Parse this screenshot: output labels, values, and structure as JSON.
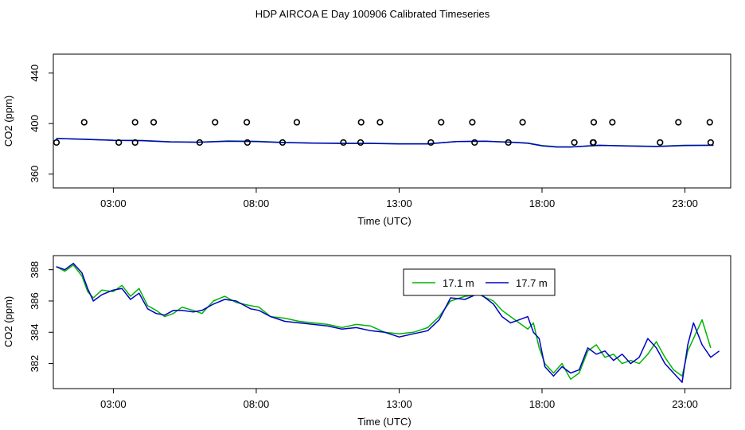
{
  "title": "HDP AIRCOA E  Day 100906  Calibrated Timeseries",
  "colors": {
    "green": "#00b400",
    "blue": "#0000c8",
    "axis": "#000000"
  },
  "chart_data": [
    {
      "type": "line",
      "panel": "top",
      "xlabel": "Time (UTC)",
      "ylabel": "CO2 (ppm)",
      "x_unit": "hours UTC",
      "xlim": [
        0.9,
        24.6
      ],
      "ylim": [
        349,
        455
      ],
      "x_ticks": [
        3,
        8,
        13,
        18,
        23
      ],
      "x_tick_labels": [
        "03:00",
        "08:00",
        "13:00",
        "18:00",
        "23:00"
      ],
      "y_ticks": [
        360,
        400,
        440
      ],
      "y_tick_labels": [
        "360",
        "400",
        "440"
      ],
      "series": [
        {
          "style": "line",
          "color": "#00b400",
          "x": [
            1.0,
            2.0,
            3.0,
            4.0,
            5.0,
            6.0,
            7.0,
            8.0,
            9.0,
            10.0,
            11.0,
            12.0,
            13.0,
            14.0,
            15.0,
            16.0,
            17.0,
            17.5,
            18.0,
            18.5,
            19.0,
            20.0,
            21.0,
            22.0,
            23.0,
            24.0
          ],
          "y": [
            388.2,
            387.6,
            386.8,
            386.6,
            385.6,
            385.3,
            386.2,
            386.0,
            385.0,
            384.6,
            384.4,
            384.4,
            384.0,
            384.0,
            385.8,
            386.0,
            385.2,
            384.6,
            382.6,
            381.6,
            381.5,
            382.6,
            382.4,
            382.0,
            382.8,
            382.8
          ]
        },
        {
          "style": "line",
          "color": "#0000c8",
          "x": [
            1.0,
            2.0,
            3.0,
            4.0,
            5.0,
            6.0,
            7.0,
            8.0,
            9.0,
            10.0,
            11.0,
            12.0,
            13.0,
            14.0,
            15.0,
            16.0,
            17.0,
            17.5,
            18.0,
            18.5,
            19.0,
            20.0,
            21.0,
            22.0,
            23.0,
            24.0
          ],
          "y": [
            388.2,
            387.5,
            386.7,
            386.5,
            385.5,
            385.2,
            386.0,
            385.8,
            384.9,
            384.5,
            384.3,
            384.3,
            383.8,
            383.9,
            385.8,
            386.1,
            385.0,
            384.4,
            382.4,
            381.4,
            381.4,
            382.8,
            382.2,
            381.8,
            382.6,
            382.8
          ]
        },
        {
          "style": "points",
          "color": "#000000",
          "x": [
            1.98,
            3.76,
            4.41,
            6.56,
            7.67,
            9.42,
            11.67,
            12.33,
            14.47,
            15.56,
            17.32,
            19.81,
            20.46,
            22.77,
            23.87,
            1.01,
            3.19,
            3.76,
            6.02,
            7.69,
            8.92,
            11.05,
            11.65,
            14.11,
            15.64,
            16.82,
            19.13,
            19.78,
            19.8,
            22.13,
            23.9
          ],
          "y": [
            401,
            401,
            401,
            401,
            401,
            401,
            401,
            401,
            401,
            401,
            401,
            401,
            401,
            401,
            401,
            385,
            385,
            385,
            385,
            385,
            385,
            385,
            385,
            385,
            385,
            385,
            385,
            385,
            385,
            385,
            385
          ]
        }
      ]
    },
    {
      "type": "line",
      "panel": "bottom",
      "xlabel": "Time (UTC)",
      "ylabel": "CO2 (ppm)",
      "x_unit": "hours UTC",
      "xlim": [
        0.9,
        24.6
      ],
      "ylim": [
        380.4,
        388.9
      ],
      "x_ticks": [
        3,
        8,
        13,
        18,
        23
      ],
      "x_tick_labels": [
        "03:00",
        "08:00",
        "13:00",
        "18:00",
        "23:00"
      ],
      "y_ticks": [
        382,
        384,
        386,
        388
      ],
      "y_tick_labels": [
        "382",
        "384",
        "386",
        "388"
      ],
      "legend": {
        "position": "top-center"
      },
      "series": [
        {
          "name": "17.1 m",
          "color": "#00b400",
          "x": [
            1.0,
            1.3,
            1.6,
            1.9,
            2.1,
            2.3,
            2.6,
            3.0,
            3.3,
            3.6,
            3.9,
            4.2,
            4.5,
            4.8,
            5.1,
            5.4,
            5.8,
            6.1,
            6.5,
            6.9,
            7.3,
            7.8,
            8.1,
            8.5,
            9.0,
            9.5,
            10.0,
            10.5,
            11.0,
            11.5,
            12.0,
            12.5,
            13.0,
            13.5,
            14.0,
            14.4,
            14.8,
            15.3,
            15.8,
            16.3,
            16.6,
            16.9,
            17.2,
            17.5,
            17.7,
            17.9,
            18.1,
            18.4,
            18.7,
            19.0,
            19.3,
            19.6,
            19.9,
            20.2,
            20.5,
            20.8,
            21.1,
            21.4,
            21.7,
            22.0,
            22.3,
            22.6,
            22.9,
            23.1,
            23.3,
            23.6,
            23.9
          ],
          "y": [
            388.2,
            387.9,
            388.3,
            387.6,
            386.6,
            386.2,
            386.7,
            386.6,
            387.0,
            386.3,
            386.8,
            385.7,
            385.4,
            385.0,
            385.2,
            385.6,
            385.4,
            385.2,
            386.0,
            386.3,
            385.9,
            385.7,
            385.6,
            385.0,
            384.9,
            384.7,
            384.6,
            384.5,
            384.3,
            384.5,
            384.4,
            384.0,
            383.9,
            384.0,
            384.3,
            385.0,
            386.0,
            386.3,
            386.4,
            386.0,
            385.4,
            385.0,
            384.6,
            384.2,
            384.6,
            383.0,
            382.0,
            381.4,
            382.0,
            381.0,
            381.4,
            382.8,
            383.2,
            382.4,
            382.6,
            382.0,
            382.2,
            382.0,
            382.6,
            383.4,
            382.4,
            381.6,
            381.2,
            382.8,
            383.6,
            384.8,
            383.0
          ]
        },
        {
          "name": "17.7 m",
          "color": "#0000c8",
          "x": [
            1.0,
            1.3,
            1.6,
            1.9,
            2.1,
            2.3,
            2.6,
            3.0,
            3.3,
            3.6,
            3.9,
            4.2,
            4.5,
            4.8,
            5.1,
            5.4,
            5.8,
            6.1,
            6.5,
            6.9,
            7.3,
            7.8,
            8.1,
            8.5,
            9.0,
            9.5,
            10.0,
            10.5,
            11.0,
            11.5,
            12.0,
            12.5,
            13.0,
            13.5,
            14.0,
            14.4,
            14.8,
            15.3,
            15.8,
            16.3,
            16.6,
            16.9,
            17.2,
            17.5,
            17.7,
            17.9,
            18.1,
            18.4,
            18.7,
            19.0,
            19.3,
            19.6,
            19.9,
            20.2,
            20.5,
            20.8,
            21.1,
            21.4,
            21.7,
            22.0,
            22.3,
            22.6,
            22.9,
            23.1,
            23.3,
            23.6,
            23.9,
            24.2
          ],
          "y": [
            388.2,
            388.0,
            388.4,
            387.8,
            386.8,
            386.0,
            386.4,
            386.7,
            386.8,
            386.1,
            386.5,
            385.5,
            385.2,
            385.1,
            385.4,
            385.4,
            385.3,
            385.4,
            385.8,
            386.1,
            386.0,
            385.5,
            385.4,
            385.0,
            384.7,
            384.6,
            384.5,
            384.4,
            384.2,
            384.3,
            384.1,
            384.0,
            383.7,
            383.9,
            384.1,
            384.8,
            386.2,
            386.1,
            386.5,
            385.8,
            385.0,
            384.6,
            384.8,
            385.0,
            384.0,
            383.6,
            381.8,
            381.2,
            381.8,
            381.4,
            381.6,
            383.0,
            382.6,
            382.8,
            382.2,
            382.6,
            382.0,
            382.4,
            383.6,
            383.0,
            382.0,
            381.4,
            380.8,
            383.2,
            384.6,
            383.2,
            382.4,
            382.8
          ]
        }
      ]
    }
  ]
}
